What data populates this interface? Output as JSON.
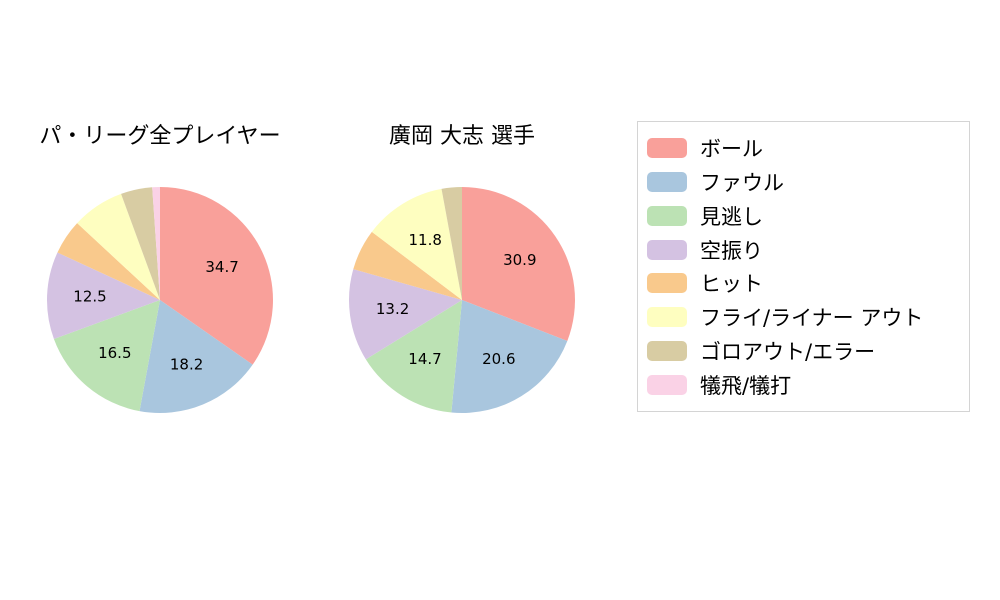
{
  "chart_data": [
    {
      "type": "pie",
      "title": "パ・リーグ全プレイヤー",
      "categories": [
        "ボール",
        "ファウル",
        "見逃し",
        "空振り",
        "ヒット",
        "フライ/ライナー アウト",
        "ゴロアウト/エラー",
        "犠飛/犠打"
      ],
      "values": [
        34.7,
        18.2,
        16.5,
        12.5,
        5.0,
        7.5,
        4.5,
        1.1
      ],
      "colors": [
        "#F9A09A",
        "#A9C6DE",
        "#BCE2B4",
        "#D4C2E2",
        "#F9C98C",
        "#FEFEC0",
        "#D8CCA3",
        "#FAD2E6"
      ],
      "start_angle_deg_from_top": 0,
      "direction": "clockwise",
      "label_threshold": 10,
      "labels_shown": [
        34.7,
        18.2,
        16.5,
        12.5
      ]
    },
    {
      "type": "pie",
      "title": "廣岡 大志  選手",
      "categories": [
        "ボール",
        "ファウル",
        "見逃し",
        "空振り",
        "ヒット",
        "フライ/ライナー アウト",
        "ゴロアウト/エラー",
        "犠飛/犠打"
      ],
      "values": [
        30.9,
        20.6,
        14.7,
        13.2,
        5.9,
        11.8,
        2.9,
        0
      ],
      "colors": [
        "#F9A09A",
        "#A9C6DE",
        "#BCE2B4",
        "#D4C2E2",
        "#F9C98C",
        "#FEFEC0",
        "#D8CCA3",
        "#FAD2E6"
      ],
      "start_angle_deg_from_top": 0,
      "direction": "clockwise",
      "label_threshold": 10,
      "labels_shown": [
        30.9,
        20.6,
        14.7,
        13.2,
        11.8
      ]
    }
  ],
  "legend": {
    "items": [
      {
        "label": "ボール",
        "color": "#F9A09A"
      },
      {
        "label": "ファウル",
        "color": "#A9C6DE"
      },
      {
        "label": "見逃し",
        "color": "#BCE2B4"
      },
      {
        "label": "空振り",
        "color": "#D4C2E2"
      },
      {
        "label": "ヒット",
        "color": "#F9C98C"
      },
      {
        "label": "フライ/ライナー アウト",
        "color": "#FEFEC0"
      },
      {
        "label": "ゴロアウト/エラー",
        "color": "#D8CCA3"
      },
      {
        "label": "犠飛/犠打",
        "color": "#FAD2E6"
      }
    ]
  }
}
